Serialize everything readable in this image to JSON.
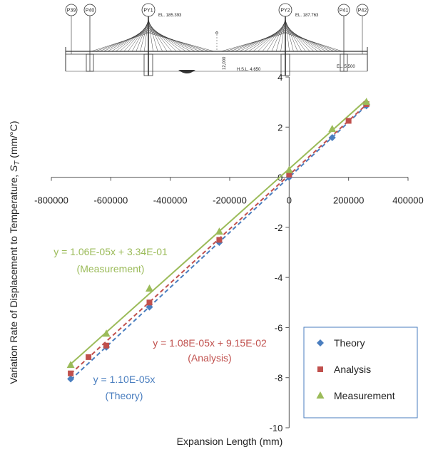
{
  "figure": {
    "pier_labels": [
      "P39",
      "P40",
      "PY1",
      "PY2",
      "P41",
      "P42"
    ],
    "elevation_labels": [
      "EL. 185.393",
      "EL. 187.763",
      "H.S.L. 4.650",
      "EL. 5.500",
      "12,000"
    ]
  },
  "chart_data": {
    "type": "scatter",
    "xlabel": "Expansion Length (mm)",
    "ylabel_main": "Variation Rate of Displacement to Temperature, ",
    "ylabel_symbol": "S",
    "ylabel_sub": "T",
    "ylabel_unit": " (mm/°C)",
    "xlim": [
      -800000,
      400000
    ],
    "ylim": [
      -10,
      4
    ],
    "xticks": [
      -800000,
      -600000,
      -400000,
      -200000,
      0,
      200000,
      400000
    ],
    "yticks": [
      -10,
      -8,
      -6,
      -4,
      -2,
      0,
      2,
      4
    ],
    "xtick_labels": [
      "-800000",
      "-600000",
      "-400000",
      "-200000",
      "0",
      "200000",
      "400000"
    ],
    "ytick_labels": [
      "-10",
      "-8",
      "-6",
      "-4",
      "-2",
      "0",
      "2",
      "4"
    ],
    "grid": false,
    "legend_position": "bottom-right",
    "series": [
      {
        "name": "Theory",
        "marker": "diamond",
        "color": "#4a7ebf",
        "line_style": "dashed",
        "points": [
          [
            -735000,
            -8.05
          ],
          [
            -615000,
            -6.78
          ],
          [
            -470000,
            -5.18
          ],
          [
            -235000,
            -2.6
          ],
          [
            0,
            0.0
          ],
          [
            145000,
            1.58
          ],
          [
            260000,
            2.85
          ]
        ],
        "fit": {
          "slope": 1.1e-05,
          "intercept": 0
        },
        "equation": "y = 1.10E-05x",
        "equation_note": "(Theory)"
      },
      {
        "name": "Analysis",
        "marker": "square",
        "color": "#c0504d",
        "line_style": "dashed",
        "points": [
          [
            -735000,
            -7.83
          ],
          [
            -675000,
            -7.18
          ],
          [
            -615000,
            -6.72
          ],
          [
            -470000,
            -5.0
          ],
          [
            -235000,
            -2.5
          ],
          [
            0,
            0.1
          ],
          [
            200000,
            2.25
          ],
          [
            260000,
            2.92
          ]
        ],
        "fit": {
          "slope": 1.08e-05,
          "intercept": 0.0915
        },
        "equation": "y = 1.08E-05x + 9.15E-02",
        "equation_note": "(Analysis)"
      },
      {
        "name": "Measurement",
        "marker": "triangle",
        "color": "#9bbb59",
        "line_style": "solid",
        "points": [
          [
            -735000,
            -7.5
          ],
          [
            -615000,
            -6.25
          ],
          [
            -470000,
            -4.45
          ],
          [
            -235000,
            -2.18
          ],
          [
            0,
            0.28
          ],
          [
            145000,
            1.92
          ],
          [
            260000,
            3.0
          ]
        ],
        "fit": {
          "slope": 1.06e-05,
          "intercept": 0.334
        },
        "equation": "y = 1.06E-05x + 3.34E-01",
        "equation_note": "(Measurement)"
      }
    ]
  }
}
